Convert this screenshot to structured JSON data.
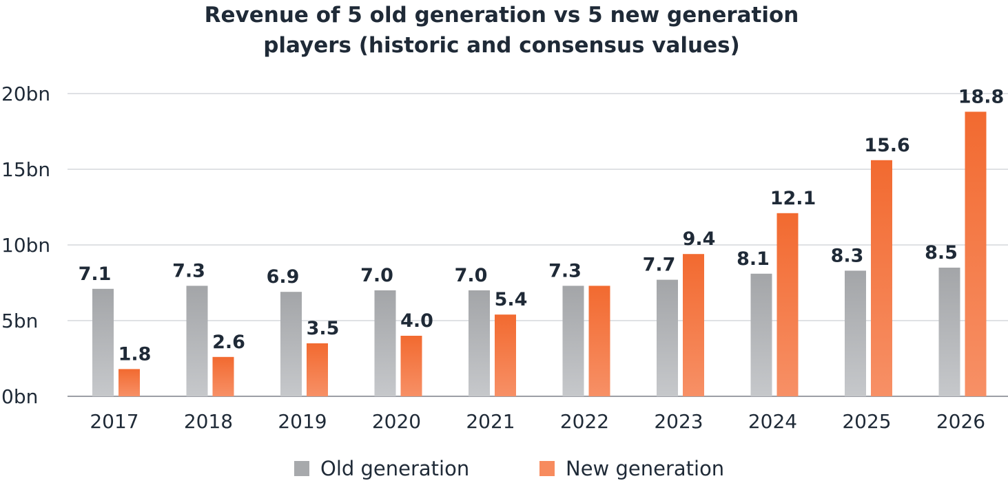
{
  "title_line1": "Revenue of 5 old generation vs 5 new generation",
  "title_line2": "players (historic and consensus values)",
  "chart_data": {
    "type": "bar",
    "title": "Revenue of 5 old generation vs 5 new generation players (historic and consensus values)",
    "categories": [
      "2017",
      "2018",
      "2019",
      "2020",
      "2021",
      "2022",
      "2023",
      "2024",
      "2025",
      "2026"
    ],
    "series": [
      {
        "name": "Old generation",
        "values": [
          7.1,
          7.3,
          6.9,
          7.0,
          7.0,
          7.3,
          7.7,
          8.1,
          8.3,
          8.5
        ],
        "labels": [
          "7.1",
          "7.3",
          "6.9",
          "7.0",
          "7.0",
          "7.3",
          "7.7",
          "8.1",
          "8.3",
          "8.5"
        ],
        "color": "#a7a9ac"
      },
      {
        "name": "New generation",
        "values": [
          1.8,
          2.6,
          3.5,
          4.0,
          5.4,
          7.3,
          9.4,
          12.1,
          15.6,
          18.8
        ],
        "labels": [
          "1.8",
          "2.6",
          "3.5",
          "4.0",
          "5.4",
          "",
          "9.4",
          "12.1",
          "15.6",
          "18.8"
        ],
        "color": "#f26c35"
      }
    ],
    "y_ticks": [
      "0bn",
      "5bn",
      "10bn",
      "15bn",
      "20bn"
    ],
    "ylim": [
      0,
      20
    ],
    "grid": true,
    "legend": "bottom-center"
  }
}
